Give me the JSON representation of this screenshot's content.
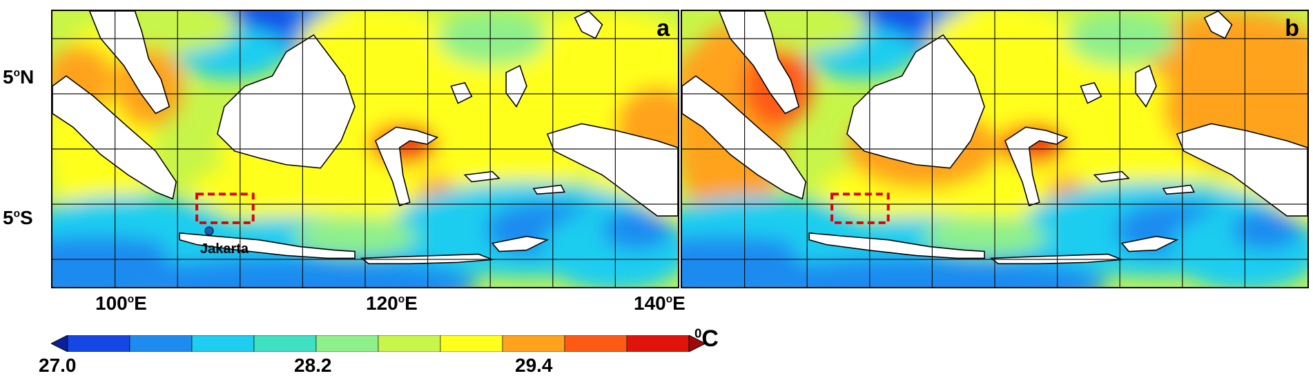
{
  "panels": [
    {
      "letter": "a"
    },
    {
      "letter": "b"
    }
  ],
  "lat_labels": [
    {
      "deg": "5",
      "sup": "o",
      "hem": "N"
    },
    {
      "deg": "5",
      "sup": "o",
      "hem": "S"
    }
  ],
  "lon_labels": [
    {
      "deg": "100",
      "sup": "o",
      "hem": "E"
    },
    {
      "deg": "120",
      "sup": "o",
      "hem": "E"
    },
    {
      "deg": "140",
      "sup": "o",
      "hem": "E"
    }
  ],
  "city_marker": {
    "name": "Jakarta"
  },
  "colorbar": {
    "unit_sup": "0",
    "unit": "C",
    "ticks": [
      "27.0",
      "28.2",
      "29.4"
    ],
    "colors": [
      "#0a1f9c",
      "#1447e6",
      "#1e8bf0",
      "#1ecdf0",
      "#3fe0c4",
      "#8ef08a",
      "#c8f54a",
      "#ffff1e",
      "#ffa31e",
      "#ff5a14",
      "#e0140a",
      "#a00a0a"
    ]
  },
  "map_colors": {
    "land": "#ffffff",
    "coast": "#000000",
    "grid": "#111111",
    "study_box": "#e00000",
    "city_dot": "#1e5bb0"
  }
}
